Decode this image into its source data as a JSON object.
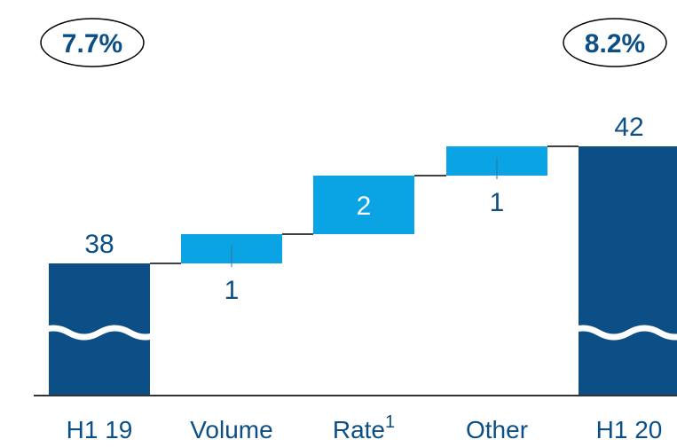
{
  "chart_data": {
    "type": "bar",
    "subtype": "waterfall",
    "title": "",
    "xlabel": "",
    "ylabel": "",
    "axis_break": true,
    "colors": {
      "total": "#0b4f86",
      "delta": "#0aa4e4",
      "label": "#0b4f86",
      "connector": "#000000",
      "axis": "#333333"
    },
    "categories": [
      {
        "label": "H1 19",
        "sup": ""
      },
      {
        "label": "Volume",
        "sup": ""
      },
      {
        "label": "Rate",
        "sup": "1"
      },
      {
        "label": "Other",
        "sup": ""
      },
      {
        "label": "H1 20",
        "sup": ""
      }
    ],
    "bars": [
      {
        "kind": "total",
        "start": 0,
        "end": 38,
        "label": "38"
      },
      {
        "kind": "delta",
        "start": 38,
        "end": 39,
        "label": "1"
      },
      {
        "kind": "delta",
        "start": 39,
        "end": 41,
        "label": "2"
      },
      {
        "kind": "delta",
        "start": 41,
        "end": 42,
        "label": "1"
      },
      {
        "kind": "total",
        "start": 0,
        "end": 42,
        "label": "42"
      }
    ],
    "badges": [
      {
        "category_index": 0,
        "text": "7.7%"
      },
      {
        "category_index": 4,
        "text": "8.2%"
      }
    ]
  }
}
